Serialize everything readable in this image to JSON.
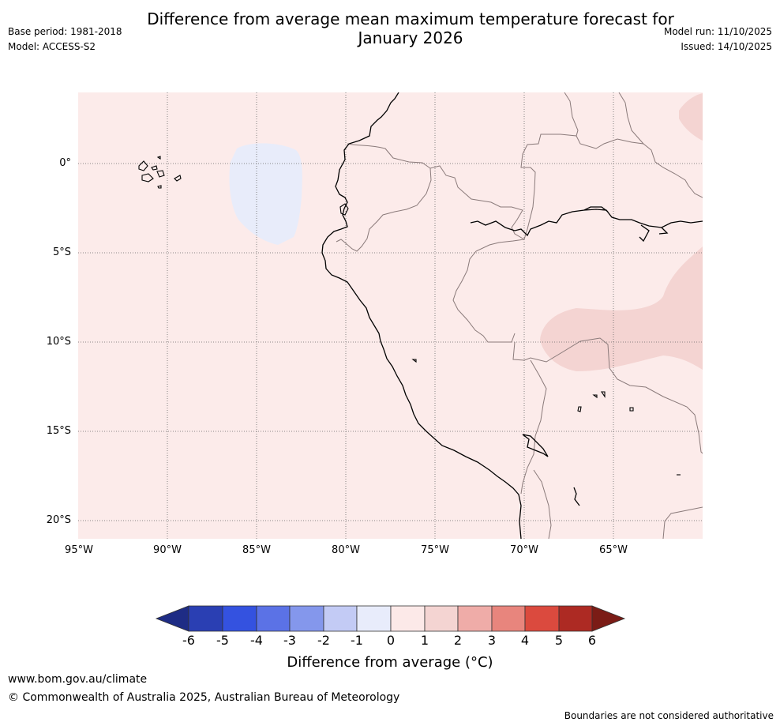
{
  "title": {
    "line1": "Difference from average mean maximum temperature forecast for",
    "line2": "January 2026"
  },
  "meta": {
    "base_period": "Base period: 1981-2018",
    "model": "Model: ACCESS-S2",
    "model_run": "Model run: 11/10/2025",
    "issued": "Issued: 14/10/2025"
  },
  "map": {
    "lat_labels": [
      "0°",
      "5°S",
      "10°S",
      "15°S",
      "20°S"
    ],
    "lon_labels": [
      "95°W",
      "90°W",
      "85°W",
      "80°W",
      "75°W",
      "70°W",
      "65°W"
    ],
    "background_color": "#fcebea",
    "anomaly_regions": [
      {
        "name": "cool anomaly west of Ecuador",
        "range": "-1 to 0",
        "color": "#e8ecfa"
      },
      {
        "name": "warm anomaly over Peru/Bolivia/Brazil",
        "range": "1 to 2",
        "color": "#f4d4d2"
      },
      {
        "name": "warm anomaly northeast corner",
        "range": "1 to 2",
        "color": "#f4d4d2"
      }
    ]
  },
  "colorbar": {
    "ticks": [
      "-6",
      "-5",
      "-4",
      "-3",
      "-2",
      "-1",
      "0",
      "1",
      "2",
      "3",
      "4",
      "5",
      "6"
    ],
    "colors": [
      "#1e2c85",
      "#2a3fb3",
      "#3452e0",
      "#5b72e6",
      "#8497ec",
      "#c3cbf5",
      "#e8ecfb",
      "#fce9e8",
      "#f4d4d2",
      "#efaca8",
      "#e8857d",
      "#db4a3e",
      "#ad2a23",
      "#7b1c16"
    ],
    "label": "Difference from average (°C)"
  },
  "footer": {
    "url": "www.bom.gov.au/climate",
    "copyright": "© Commonwealth of Australia 2025, Australian Bureau of Meteorology",
    "disclaimer": "Boundaries are not considered authoritative"
  }
}
